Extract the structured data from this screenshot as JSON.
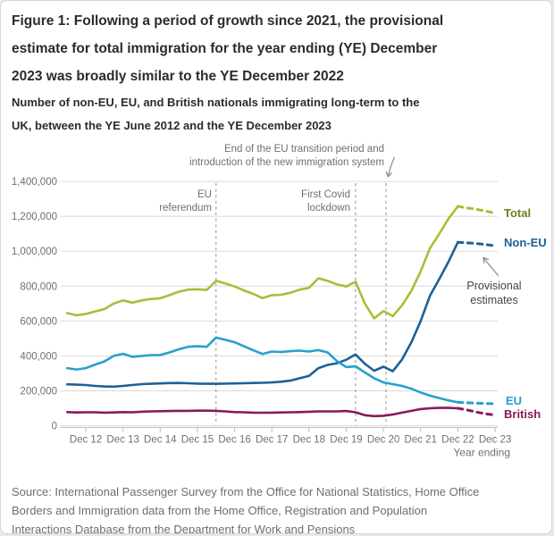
{
  "figure": {
    "title": "Figure 1: Following a period of growth since 2021, the provisional\nestimate for total immigration for the year ending (YE) December\n2023 was broadly similar to the YE December 2022",
    "subtitle": "Number of non-EU, EU, and British nationals immigrating long-term to the\nUK, between the YE June 2012 and the YE December 2023",
    "source": "Source: International Passenger Survey from the Office for National Statistics, Home Office\nBorders and Immigration data from the Home Office, Registration and Population\nInteractions Database from the Department for Work and Pensions"
  },
  "annotations": {
    "eu_referendum": "EU\nreferendum",
    "covid_lockdown": "First Covid\nlockdown",
    "eu_transition": "End of the EU transition period and\nintroduction of the new immigration system",
    "provisional": "Provisional\nestimates"
  },
  "chart_data": {
    "type": "line",
    "title": "Following a period of growth since 2021, the provisional estimate for total immigration for the year ending (YE) December 2023 was broadly similar to the YE December 2022",
    "subtitle": "Number of non-EU, EU, and British nationals immigrating long-term to the UK, between the YE June 2012 and the YE December 2023",
    "xlabel": "Year ending",
    "ylabel": "",
    "ylim": [
      0,
      1400000
    ],
    "grid": true,
    "y_tick_labels": [
      "0",
      "200,000",
      "400,000",
      "600,000",
      "800,000",
      "1,000,000",
      "1,200,000",
      "1,400,000"
    ],
    "x_tick_labels": [
      "Dec 12",
      "Dec 13",
      "Dec 14",
      "Dec 15",
      "Dec 16",
      "Dec 17",
      "Dec 18",
      "Dec 19",
      "Dec 20",
      "Dec 21",
      "Dec 22",
      "Dec 23"
    ],
    "x": [
      "Jun 12",
      "Sep 12",
      "Dec 12",
      "Mar 13",
      "Jun 13",
      "Sep 13",
      "Dec 13",
      "Mar 14",
      "Jun 14",
      "Sep 14",
      "Dec 14",
      "Mar 15",
      "Jun 15",
      "Sep 15",
      "Dec 15",
      "Mar 16",
      "Jun 16",
      "Sep 16",
      "Dec 16",
      "Mar 17",
      "Jun 17",
      "Sep 17",
      "Dec 17",
      "Mar 18",
      "Jun 18",
      "Sep 18",
      "Dec 18",
      "Mar 19",
      "Jun 19",
      "Sep 19",
      "Dec 19",
      "Mar 20",
      "Jun 20",
      "Sep 20",
      "Dec 20",
      "Mar 21",
      "Jun 21",
      "Sep 21",
      "Dec 21",
      "Mar 22",
      "Jun 22",
      "Sep 22",
      "Dec 22",
      "Mar 23",
      "Jun 23",
      "Sep 23",
      "Dec 23"
    ],
    "provisional_from_index": 42,
    "provisional_from_label": "Dec 22",
    "series": [
      {
        "name": "Total",
        "color": "#A8BD3A",
        "label_color": "#6F7D1F",
        "values_thousands": [
          645,
          633,
          640,
          655,
          668,
          700,
          718,
          705,
          718,
          726,
          730,
          748,
          768,
          780,
          782,
          778,
          830,
          815,
          798,
          775,
          755,
          731,
          748,
          750,
          762,
          780,
          790,
          845,
          830,
          810,
          798,
          825,
          700,
          615,
          657,
          628,
          690,
          773,
          885,
          1017,
          1100,
          1187,
          1257,
          1248,
          1240,
          1230,
          1218
        ]
      },
      {
        "name": "Non-EU",
        "color": "#206095",
        "label_color": "#206095",
        "values_thousands": [
          237,
          235,
          233,
          228,
          225,
          224,
          228,
          233,
          238,
          240,
          242,
          244,
          245,
          243,
          241,
          240,
          240,
          241,
          242,
          243,
          245,
          246,
          248,
          252,
          258,
          272,
          285,
          330,
          348,
          358,
          378,
          408,
          355,
          315,
          338,
          312,
          380,
          478,
          600,
          745,
          840,
          940,
          1051,
          1048,
          1044,
          1038,
          1031
        ]
      },
      {
        "name": "EU",
        "color": "#27A0CC",
        "label_color": "#27A0CC",
        "values_thousands": [
          330,
          322,
          330,
          350,
          368,
          400,
          412,
          395,
          400,
          404,
          405,
          420,
          438,
          452,
          455,
          452,
          505,
          492,
          478,
          455,
          432,
          411,
          425,
          422,
          427,
          430,
          425,
          433,
          420,
          370,
          336,
          340,
          305,
          272,
          248,
          238,
          228,
          212,
          190,
          172,
          158,
          145,
          134,
          131,
          129,
          127,
          126
        ]
      },
      {
        "name": "British",
        "color": "#871A5B",
        "label_color": "#871A5B",
        "values_thousands": [
          78,
          76,
          77,
          77,
          75,
          76,
          78,
          77,
          80,
          82,
          83,
          84,
          85,
          85,
          86,
          86,
          85,
          82,
          78,
          77,
          75,
          74,
          75,
          76,
          77,
          78,
          80,
          82,
          82,
          82,
          84,
          77,
          60,
          55,
          57,
          64,
          75,
          85,
          95,
          100,
          102,
          102,
          100,
          90,
          78,
          68,
          61
        ]
      }
    ],
    "events": [
      {
        "label": "EU referendum",
        "at": "Jun 2016"
      },
      {
        "label": "First Covid lockdown",
        "at": "Mar 2020"
      },
      {
        "label": "End of the EU transition period and introduction of the new immigration system",
        "at": "Dec 2020"
      }
    ],
    "colors": {
      "grid": "#dadadc",
      "axis": "#bcbcbe",
      "tick_text": "#6f6f71",
      "event_line": "#aeaeb0",
      "arrow": "#8b8b8d"
    }
  }
}
